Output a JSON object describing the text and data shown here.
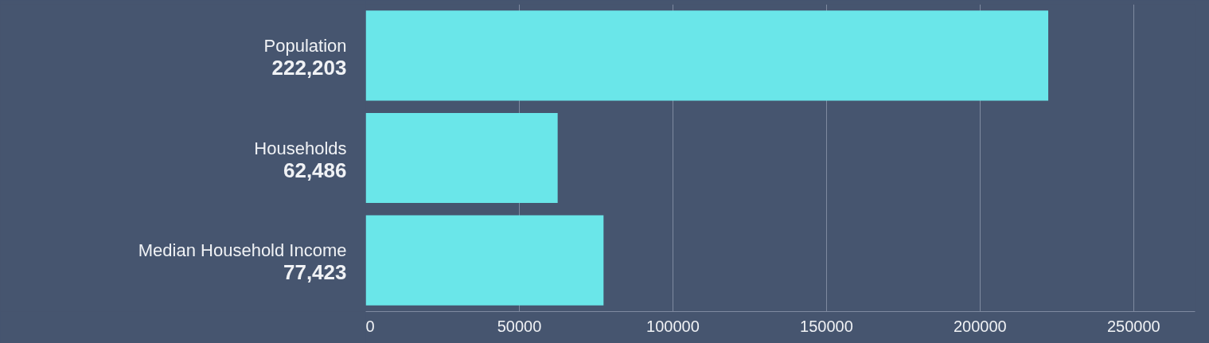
{
  "chart_data": {
    "type": "bar",
    "orientation": "horizontal",
    "categories": [
      "Population",
      "Households",
      "Median Household Income"
    ],
    "values": [
      222203,
      62486,
      77423
    ],
    "value_labels": [
      "222,203",
      "62,486",
      "77,423"
    ],
    "color": "#6ae6e9",
    "xlim": [
      0,
      270000
    ],
    "xticks": [
      0,
      50000,
      100000,
      150000,
      200000,
      250000
    ],
    "grid": "x"
  }
}
